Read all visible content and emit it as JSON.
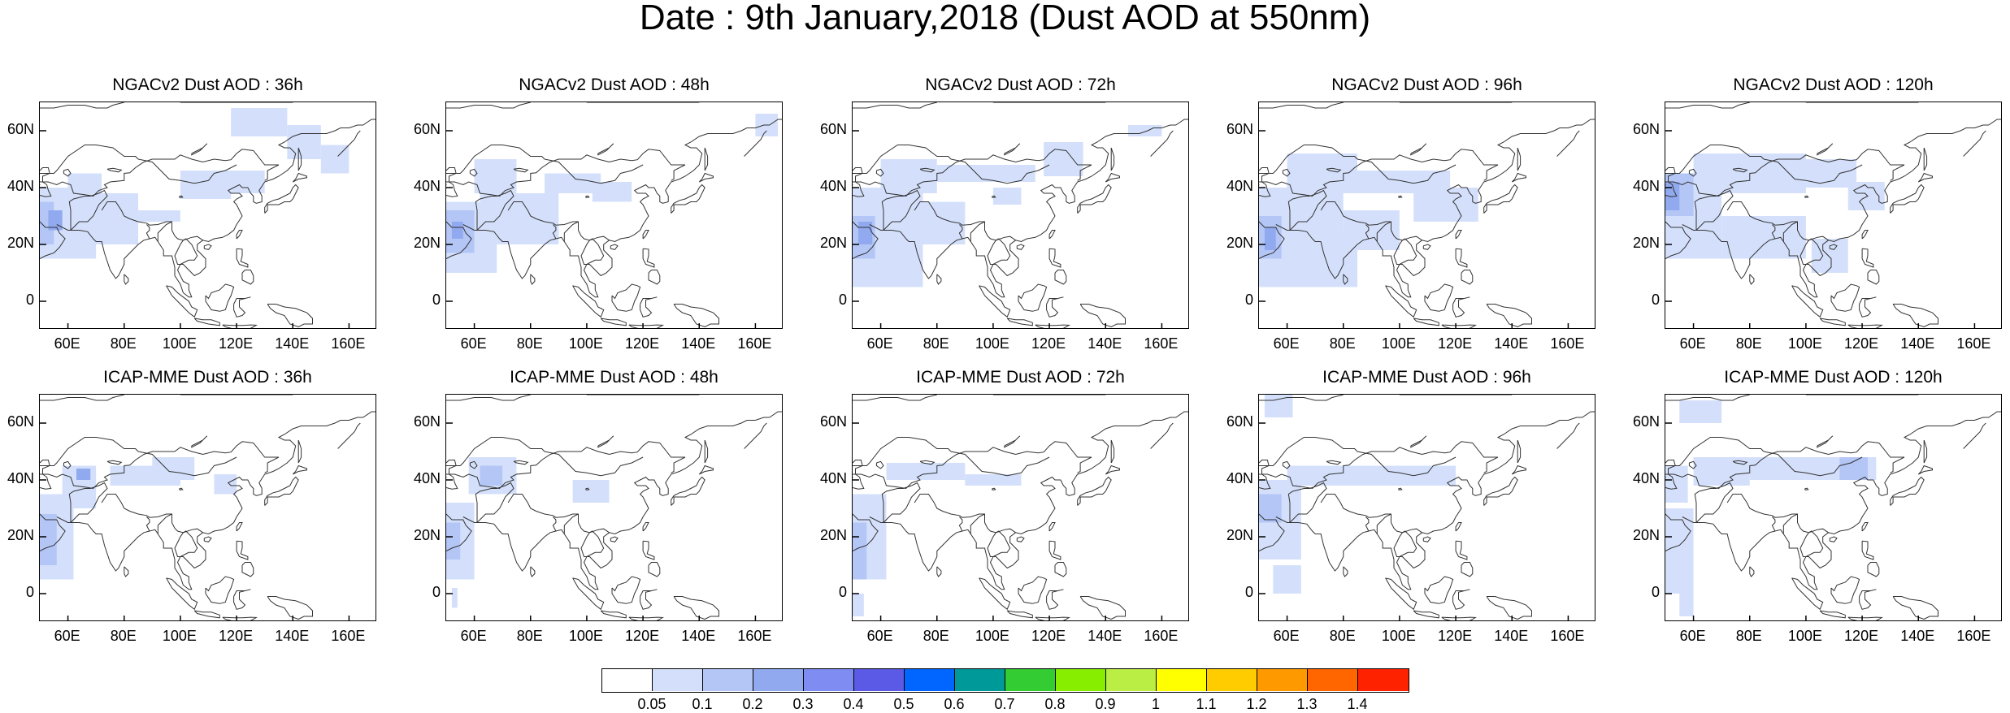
{
  "title": "Date : 9th January,2018 (Dust AOD at 550nm)",
  "axes": {
    "lat_ticks": [
      "60N",
      "40N",
      "20N",
      "0"
    ],
    "lon_ticks": [
      "60E",
      "80E",
      "100E",
      "120E",
      "140E",
      "160E"
    ]
  },
  "colors": {
    "dust_light": "#d4e0fb",
    "dust_mid": "#b3c6f6",
    "dust_dark": "#91a9ef",
    "coast": "#333333"
  },
  "panels": [
    {
      "title": "NGACv2 Dust AOD : 36h"
    },
    {
      "title": "NGACv2 Dust AOD : 48h"
    },
    {
      "title": "NGACv2 Dust AOD : 72h"
    },
    {
      "title": "NGACv2 Dust AOD : 96h"
    },
    {
      "title": "NGACv2 Dust AOD : 120h"
    },
    {
      "title": "ICAP-MME Dust AOD : 36h"
    },
    {
      "title": "ICAP-MME Dust AOD : 48h"
    },
    {
      "title": "ICAP-MME Dust AOD : 72h"
    },
    {
      "title": "ICAP-MME Dust AOD : 96h"
    },
    {
      "title": "ICAP-MME Dust AOD : 120h"
    }
  ],
  "colorbar": {
    "colors": [
      "#ffffff",
      "#d4e0fb",
      "#b3c6f6",
      "#91a9ef",
      "#7f8cf2",
      "#5a5ae6",
      "#0066ff",
      "#009999",
      "#33cc33",
      "#88ee00",
      "#bbee44",
      "#ffff00",
      "#ffcc00",
      "#ff9900",
      "#ff6600",
      "#ff2200"
    ],
    "labels": [
      "0.05",
      "0.1",
      "0.2",
      "0.3",
      "0.4",
      "0.5",
      "0.6",
      "0.7",
      "0.8",
      "0.9",
      "1",
      "1.1",
      "1.2",
      "1.3",
      "1.4"
    ]
  }
}
